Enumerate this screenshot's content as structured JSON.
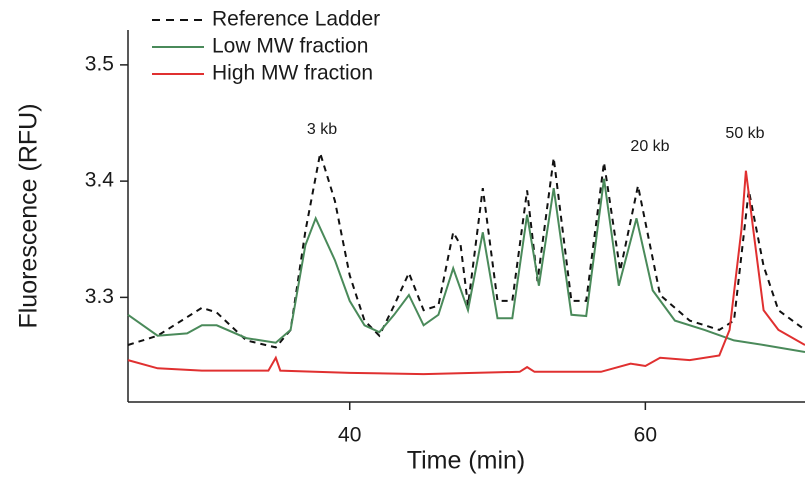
{
  "chart_data": {
    "type": "line",
    "xlabel": "Time (min)",
    "ylabel": "Fluorescence (RFU)",
    "xlim": [
      25,
      70.8
    ],
    "ylim": [
      3.21,
      3.53
    ],
    "xticks": [
      40,
      60
    ],
    "yticks": [
      3.3,
      3.4,
      3.5
    ],
    "annotations": [
      "3 kb",
      "20 kb",
      "50 kb"
    ],
    "series": [
      {
        "name": "Reference Ladder",
        "color": "#111111",
        "dashed": true,
        "x": [
          25,
          27,
          30,
          31,
          33,
          35,
          36,
          37,
          38,
          39,
          40,
          41,
          42,
          43,
          44,
          45,
          46,
          47,
          47.5,
          48,
          49,
          50,
          51,
          52,
          52.7,
          53.8,
          55,
          56,
          57.2,
          58.3,
          59.5,
          61,
          63,
          65,
          66,
          67,
          68,
          69,
          70.8
        ],
        "values": [
          3.259,
          3.267,
          3.291,
          3.287,
          3.263,
          3.257,
          3.272,
          3.357,
          3.424,
          3.383,
          3.319,
          3.28,
          3.267,
          3.293,
          3.321,
          3.289,
          3.293,
          3.356,
          3.345,
          3.293,
          3.394,
          3.297,
          3.297,
          3.392,
          3.314,
          3.42,
          3.297,
          3.297,
          3.416,
          3.323,
          3.396,
          3.302,
          3.28,
          3.272,
          3.28,
          3.392,
          3.327,
          3.289,
          3.272
        ]
      },
      {
        "name": "Low MW fraction",
        "color": "#4a8a5a",
        "dashed": false,
        "x": [
          25,
          27,
          29,
          30,
          31,
          33,
          35,
          36,
          37,
          37.7,
          39,
          40,
          41,
          42,
          43,
          44,
          45,
          46,
          47,
          48,
          49,
          50,
          51,
          52,
          52.8,
          53.8,
          55,
          56,
          57.2,
          58.2,
          59.4,
          60.5,
          62,
          64,
          66,
          68,
          70.8
        ],
        "values": [
          3.285,
          3.267,
          3.269,
          3.276,
          3.276,
          3.265,
          3.261,
          3.272,
          3.345,
          3.368,
          3.332,
          3.297,
          3.276,
          3.27,
          3.285,
          3.302,
          3.276,
          3.285,
          3.325,
          3.289,
          3.356,
          3.282,
          3.282,
          3.371,
          3.31,
          3.394,
          3.285,
          3.284,
          3.402,
          3.31,
          3.368,
          3.306,
          3.28,
          3.272,
          3.263,
          3.259,
          3.253
        ]
      },
      {
        "name": "High MW fraction",
        "color": "#e03030",
        "dashed": false,
        "x": [
          25,
          27,
          30,
          34.5,
          35,
          35.3,
          40,
          45,
          51.5,
          52,
          52.5,
          57,
          59,
          60,
          61,
          63,
          65,
          65.7,
          66.5,
          66.8,
          67.3,
          68,
          69,
          70.8
        ],
        "values": [
          3.246,
          3.239,
          3.237,
          3.237,
          3.248,
          3.237,
          3.235,
          3.234,
          3.236,
          3.24,
          3.236,
          3.236,
          3.243,
          3.241,
          3.248,
          3.246,
          3.25,
          3.272,
          3.358,
          3.409,
          3.358,
          3.289,
          3.272,
          3.259
        ]
      }
    ]
  }
}
